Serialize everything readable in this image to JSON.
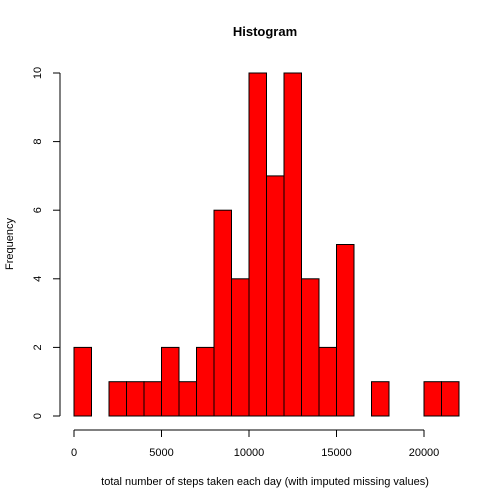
{
  "chart_data": {
    "type": "bar",
    "title": "Histogram",
    "xlabel": "total number of steps taken each day (with imputed missing values)",
    "ylabel": "Frequency",
    "bar_color": "#ff0000",
    "border_color": "#000000",
    "bins": [
      {
        "from": 0,
        "to": 1000,
        "count": 2
      },
      {
        "from": 1000,
        "to": 2000,
        "count": 0
      },
      {
        "from": 2000,
        "to": 3000,
        "count": 1
      },
      {
        "from": 3000,
        "to": 4000,
        "count": 1
      },
      {
        "from": 4000,
        "to": 5000,
        "count": 1
      },
      {
        "from": 5000,
        "to": 6000,
        "count": 2
      },
      {
        "from": 6000,
        "to": 7000,
        "count": 1
      },
      {
        "from": 7000,
        "to": 8000,
        "count": 2
      },
      {
        "from": 8000,
        "to": 9000,
        "count": 6
      },
      {
        "from": 9000,
        "to": 10000,
        "count": 4
      },
      {
        "from": 10000,
        "to": 11000,
        "count": 10
      },
      {
        "from": 11000,
        "to": 12000,
        "count": 7
      },
      {
        "from": 12000,
        "to": 13000,
        "count": 10
      },
      {
        "from": 13000,
        "to": 14000,
        "count": 4
      },
      {
        "from": 14000,
        "to": 15000,
        "count": 2
      },
      {
        "from": 15000,
        "to": 16000,
        "count": 5
      },
      {
        "from": 16000,
        "to": 17000,
        "count": 0
      },
      {
        "from": 17000,
        "to": 18000,
        "count": 1
      },
      {
        "from": 18000,
        "to": 19000,
        "count": 0
      },
      {
        "from": 19000,
        "to": 20000,
        "count": 0
      },
      {
        "from": 20000,
        "to": 21000,
        "count": 1
      },
      {
        "from": 21000,
        "to": 22000,
        "count": 1
      }
    ],
    "xlim": [
      0,
      22000
    ],
    "ylim": [
      0,
      10
    ],
    "x_ticks": [
      0,
      5000,
      10000,
      15000,
      20000
    ],
    "y_ticks": [
      0,
      2,
      4,
      6,
      8,
      10
    ],
    "grid": false,
    "legend": "none"
  }
}
